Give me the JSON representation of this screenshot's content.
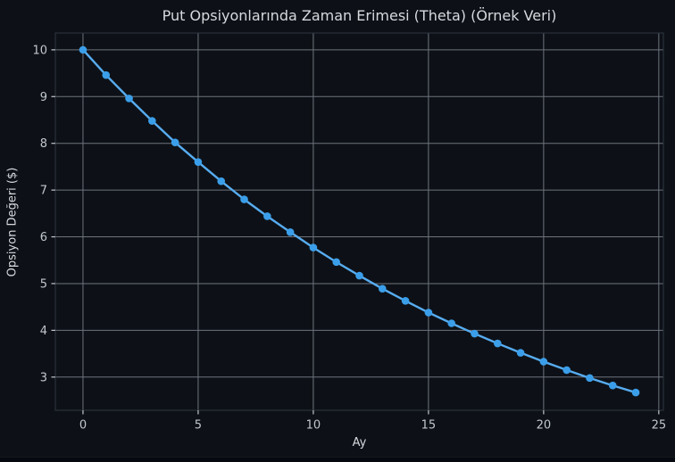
{
  "app": {
    "background": "#0d1117",
    "footer_strip_color": "#060910"
  },
  "chart_data": {
    "type": "line",
    "title": "Put Opsiyonlarında Zaman Erimesi (Theta) (Örnek Veri)",
    "xlabel": "Ay",
    "ylabel": "Opsiyon Değeri ($)",
    "x": [
      0,
      1,
      2,
      3,
      4,
      5,
      6,
      7,
      8,
      9,
      10,
      11,
      12,
      13,
      14,
      15,
      16,
      17,
      18,
      19,
      20,
      21,
      22,
      23,
      24
    ],
    "values": [
      10.0,
      9.46,
      8.96,
      8.48,
      8.02,
      7.6,
      7.19,
      6.8,
      6.44,
      6.1,
      5.77,
      5.46,
      5.17,
      4.89,
      4.63,
      4.38,
      4.15,
      3.93,
      3.72,
      3.52,
      3.33,
      3.15,
      2.98,
      2.82,
      2.67
    ],
    "series_name": "Opsiyon Değeri",
    "xticks": [
      0,
      5,
      10,
      15,
      20,
      25
    ],
    "yticks": [
      3,
      4,
      5,
      6,
      7,
      8,
      9,
      10
    ],
    "xlim": [
      -1.2,
      25.2
    ],
    "ylim": [
      2.29,
      10.36
    ],
    "grid": true,
    "legend": "none",
    "colors": {
      "line": "#57acf0",
      "marker": "#3b9ee9",
      "grid": "#6e737d",
      "spine": "#2b313a",
      "tick": "#c2c6ce",
      "text": "#d6d9de"
    }
  }
}
